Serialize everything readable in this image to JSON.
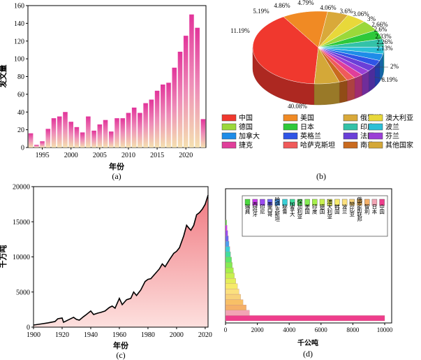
{
  "chart_data": [
    {
      "panel": "(a)",
      "type": "bar",
      "xlabel": "年份",
      "ylabel": "发文量",
      "ylim": [
        0,
        160
      ],
      "yticks": [
        "0",
        "20",
        "40",
        "60",
        "80",
        "100",
        "120",
        "140",
        "160"
      ],
      "xticks": [
        "1995",
        "2000",
        "2005",
        "2010",
        "2015",
        "2020"
      ],
      "x": [
        1993,
        1994,
        1995,
        1996,
        1997,
        1998,
        1999,
        2000,
        2001,
        2002,
        2003,
        2004,
        2005,
        2006,
        2007,
        2008,
        2009,
        2010,
        2011,
        2012,
        2013,
        2014,
        2015,
        2016,
        2017,
        2018,
        2019,
        2020,
        2021,
        2022,
        2023
      ],
      "values": [
        16,
        3,
        7,
        21,
        33,
        35,
        40,
        29,
        23,
        17,
        35,
        19,
        26,
        31,
        18,
        33,
        33,
        39,
        45,
        39,
        50,
        54,
        64,
        71,
        73,
        90,
        108,
        126,
        150,
        135,
        32
      ]
    },
    {
      "panel": "(b)",
      "type": "pie",
      "slice_labels": [
        "40.08%",
        "11.19%",
        "5.19%",
        "4.86%",
        "4.79%",
        "4.06%",
        "3.6%",
        "3.06%",
        "3%",
        "2.66%",
        "2.6%",
        "2.33%",
        "2.26%",
        "2.13%",
        "2%",
        "6.19%"
      ],
      "legend": [
        "中国",
        "美国",
        "俄罗斯",
        "澳大利亚",
        "德国",
        "日本",
        "印度",
        "波兰",
        "加拿大",
        "英格兰",
        "法国",
        "芬兰",
        "捷克",
        "哈萨克斯坦",
        "南非",
        "其他国家"
      ],
      "values": [
        40.08,
        11.19,
        5.19,
        4.86,
        4.79,
        4.06,
        3.6,
        3.06,
        3,
        2.66,
        2.6,
        2.33,
        2.26,
        2.13,
        2,
        6.19
      ],
      "colors": [
        "#f0382e",
        "#f08a24",
        "#d9a93a",
        "#e8d83a",
        "#9bd83a",
        "#2ec93a",
        "#33c2a8",
        "#2bbfd6",
        "#1e8ce8",
        "#2f55e6",
        "#6a3fd8",
        "#9b3fd6",
        "#e03e9a",
        "#f05a5a",
        "#c96a1e",
        "#d4a838"
      ]
    },
    {
      "panel": "(c)",
      "type": "area",
      "xlabel": "年份",
      "ylabel": "千万吨",
      "xlim": [
        1900,
        2022
      ],
      "ylim": [
        0,
        20000
      ],
      "xticks": [
        "1900",
        "1920",
        "1940",
        "1960",
        "1980",
        "2000",
        "2020"
      ],
      "yticks": [
        "0",
        "5000",
        "10000",
        "15000",
        "20000"
      ],
      "x": [
        1900,
        1905,
        1910,
        1915,
        1917,
        1920,
        1921,
        1925,
        1928,
        1930,
        1932,
        1935,
        1937,
        1940,
        1942,
        1945,
        1947,
        1950,
        1953,
        1955,
        1957,
        1960,
        1962,
        1965,
        1968,
        1970,
        1972,
        1975,
        1978,
        1980,
        1982,
        1985,
        1988,
        1990,
        1992,
        1995,
        1998,
        2000,
        2002,
        2005,
        2007,
        2009,
        2010,
        2012,
        2014,
        2016,
        2018,
        2020,
        2022
      ],
      "values": [
        300,
        450,
        600,
        800,
        1200,
        1300,
        700,
        1100,
        1400,
        1100,
        1000,
        1500,
        1800,
        2300,
        1800,
        2000,
        2100,
        2300,
        2800,
        3000,
        2700,
        4100,
        3200,
        3900,
        4100,
        5000,
        4500,
        5300,
        6500,
        6800,
        6900,
        7600,
        8300,
        9000,
        8600,
        9600,
        10500,
        10800,
        11300,
        13000,
        14500,
        14000,
        13800,
        14500,
        16000,
        16300,
        16800,
        17500,
        18800
      ]
    },
    {
      "panel": "(d)",
      "type": "bar",
      "orientation": "horizontal",
      "xlabel": "千公吨",
      "xlim": [
        0,
        10000
      ],
      "xticks": [
        "0",
        "2000",
        "4000",
        "6000",
        "8000",
        "10000"
      ],
      "categories": [
        "中国",
        "日本",
        "智利",
        "俄罗斯联邦",
        "赞比亚",
        "波兰",
        "韩国",
        "澳大利亚",
        "德国",
        "印度",
        "美国",
        "加拿大",
        "秘鲁",
        "保加利亚",
        "哈萨克斯坦",
        "墨西哥",
        "西班牙",
        "印尼",
        "瑞典"
      ],
      "legend_labels": [
        "瑞典",
        "西班牙",
        "印尼",
        "墨西哥",
        "哈萨克斯坦",
        "秘鲁",
        "加拿大",
        "保加利亚",
        "美国",
        "印度",
        "德国",
        "澳大利亚",
        "韩国",
        "波兰",
        "赞比亚",
        "俄罗斯联邦",
        "智利",
        "日本",
        "中国"
      ],
      "values": [
        10000,
        1500,
        1300,
        1100,
        950,
        850,
        750,
        650,
        560,
        500,
        430,
        380,
        320,
        270,
        220,
        180,
        140,
        100,
        70
      ],
      "colors": [
        "#ee3e8c",
        "#f2a4b4",
        "#f5b068",
        "#f8c066",
        "#f8d27a",
        "#fbe07e",
        "#f6ea6a",
        "#e4ee5a",
        "#c8f050",
        "#a6f04a",
        "#84ec52",
        "#5ee66a",
        "#40de9e",
        "#3acfd6",
        "#4a9ef0",
        "#6a66f0",
        "#9a4af0",
        "#cc3aee",
        "#4cd940"
      ]
    }
  ],
  "panels": {
    "a": "(a)",
    "b": "(b)",
    "c": "(c)",
    "d": "(d)"
  }
}
